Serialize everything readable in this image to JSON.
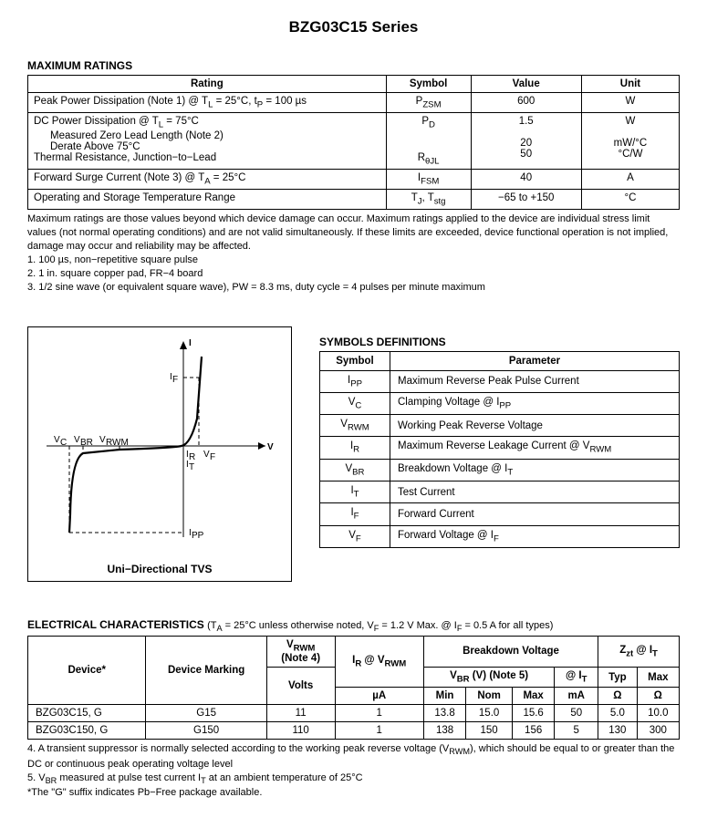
{
  "title": "BZG03C15 Series",
  "maxRatings": {
    "heading": "MAXIMUM RATINGS",
    "headers": {
      "rating": "Rating",
      "symbol": "Symbol",
      "value": "Value",
      "unit": "Unit"
    },
    "rows": [
      {
        "rating_html": "Peak Power Dissipation (Note 1) @ T<sub>L</sub> = 25°C, t<sub>P</sub> = 100 µs",
        "symbol_html": "P<sub>ZSM</sub>",
        "value": "600",
        "unit": "W"
      },
      {
        "rating_html": "DC Power Dissipation @ T<sub>L</sub> = 75°C<br><span class='indent'>Measured Zero Lead Length (Note 2)</span><span class='indent'>Derate Above 75°C</span>Thermal Resistance, Junction−to−Lead",
        "symbol_html": "P<sub>D</sub><br><br><br>R<sub>θJL</sub>",
        "value_html": "1.5<br><br>20<br>50",
        "unit_html": "W<br><br>mW/°C<br>°C/W"
      },
      {
        "rating_html": "Forward Surge Current (Note 3) @ T<sub>A</sub> = 25°C",
        "symbol_html": "I<sub>FSM</sub>",
        "value": "40",
        "unit": "A"
      },
      {
        "rating_html": "Operating and Storage Temperature Range",
        "symbol_html": "T<sub>J</sub>, T<sub>stg</sub>",
        "value": "−65 to +150",
        "unit": "°C"
      }
    ],
    "footnote_main": "Maximum ratings are those values beyond which device damage can occur. Maximum ratings applied to the device are individual stress limit values (not normal operating conditions) and are not valid simultaneously. If these limits are exceeded, device functional operation is not implied, damage may occur and reliability may be affected.",
    "footnotes": [
      "1.  100 µs, non−repetitive square pulse",
      "2.  1 in. square copper pad, FR−4 board",
      "3.  1/2 sine wave (or equivalent square wave), PW = 8.3 ms, duty cycle = 4 pulses per minute maximum"
    ]
  },
  "diagram": {
    "caption": "Uni−Directional TVS",
    "labels": {
      "I": "I",
      "V": "V",
      "IF": "I",
      "IFsub": "F",
      "IR": "I",
      "IRsub": "R",
      "IT": "I",
      "ITsub": "T",
      "VF": "V",
      "VFsub": "F",
      "VC": "V",
      "VCsub": "C",
      "VBR": "V",
      "VBRsub": "BR",
      "VRWM": "V",
      "VRWMsub": "RWM",
      "IPP": "I",
      "IPPsub": "PP"
    },
    "style": {
      "curve_color": "#000000",
      "curve_width": 2.2,
      "dash": "4 3",
      "axis_width": 1,
      "bg": "#ffffff"
    }
  },
  "symbolsDef": {
    "heading": "SYMBOLS DEFINITIONS",
    "headers": {
      "symbol": "Symbol",
      "parameter": "Parameter"
    },
    "rows": [
      {
        "sym_html": "I<sub>PP</sub>",
        "param": "Maximum Reverse Peak Pulse Current"
      },
      {
        "sym_html": "V<sub>C</sub>",
        "param_html": "Clamping Voltage @ I<sub>PP</sub>"
      },
      {
        "sym_html": "V<sub>RWM</sub>",
        "param": "Working Peak Reverse Voltage"
      },
      {
        "sym_html": "I<sub>R</sub>",
        "param_html": "Maximum Reverse Leakage Current @ V<sub>RWM</sub>"
      },
      {
        "sym_html": "V<sub>BR</sub>",
        "param_html": "Breakdown Voltage @ I<sub>T</sub>"
      },
      {
        "sym_html": "I<sub>T</sub>",
        "param": "Test Current"
      },
      {
        "sym_html": "I<sub>F</sub>",
        "param": "Forward Current"
      },
      {
        "sym_html": "V<sub>F</sub>",
        "param_html": "Forward Voltage @ I<sub>F</sub>"
      }
    ]
  },
  "elec": {
    "heading": "ELECTRICAL CHARACTERISTICS",
    "condition_html": "(T<sub>A</sub> = 25°C unless otherwise noted, V<sub>F</sub> = 1.2 V Max. @ I<sub>F</sub> = 0.5 A for all types)",
    "headers": {
      "device": "Device*",
      "marking": "Device Marking",
      "vrwm_html": "V<sub>RWM</sub><br>(Note 4)",
      "vrwm_unit": "Volts",
      "ir_html": "I<sub>R</sub> @ V<sub>RWM</sub>",
      "ir_unit": "µA",
      "breakdown": "Breakdown Voltage",
      "vbr_html": "V<sub>BR</sub> (V) (Note 5)",
      "min": "Min",
      "nom": "Nom",
      "max": "Max",
      "at_it_html": "@ I<sub>T</sub>",
      "ma": "mA",
      "zzt_html": "Z<sub>zt</sub> @ I<sub>T</sub>",
      "typ": "Typ",
      "zmax": "Max",
      "ohm": "Ω"
    },
    "rows": [
      {
        "device": "BZG03C15, G",
        "marking": "G15",
        "vrwm": "11",
        "ir": "1",
        "min": "13.8",
        "nom": "15.0",
        "max": "15.6",
        "it": "50",
        "typ": "5.0",
        "zmax": "10.0"
      },
      {
        "device": "BZG03C150, G",
        "marking": "G150",
        "vrwm": "110",
        "ir": "1",
        "min": "138",
        "nom": "150",
        "max": "156",
        "it": "5",
        "typ": "130",
        "zmax": "300"
      }
    ],
    "footnotes_html": [
      "4.  A transient suppressor is normally selected according to the working peak reverse voltage (V<sub>RWM</sub>), which should be equal to or greater than the DC or continuous peak operating voltage level",
      "5.  V<sub>BR</sub> measured at pulse test current I<sub>T</sub> at an ambient temperature of 25°C",
      "*The \"G\" suffix indicates Pb−Free package available."
    ]
  }
}
